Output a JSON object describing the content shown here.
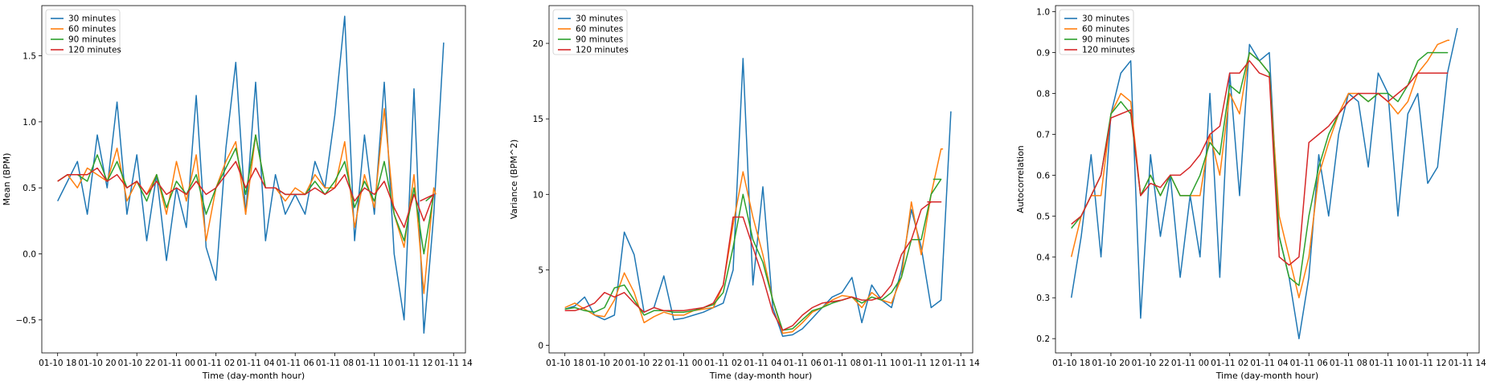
{
  "chart_data": [
    {
      "type": "line",
      "ylabel": "Mean (BPM)",
      "xlabel": "Time (day-month hour)",
      "x_ticks": [
        "01-10 18",
        "01-10 20",
        "01-10 22",
        "01-11 00",
        "01-11 02",
        "01-11 04",
        "01-11 06",
        "01-11 08",
        "01-11 10",
        "01-11 12",
        "01-11 14"
      ],
      "x_range_hours": [
        17.2,
        38.6
      ],
      "y_ticks": [
        -0.5,
        0.0,
        0.5,
        1.0,
        1.5
      ],
      "ylim": [
        -0.75,
        1.88
      ],
      "legend_position": "top-left",
      "x": [
        18,
        18.5,
        19,
        19.5,
        20,
        20.5,
        21,
        21.5,
        22,
        22.5,
        23,
        23.5,
        24,
        24.5,
        25,
        25.5,
        26,
        26.5,
        27,
        27.5,
        28,
        28.5,
        29,
        29.5,
        30,
        30.5,
        31,
        31.5,
        32,
        32.5,
        33,
        33.5,
        34,
        34.5,
        35,
        35.5,
        36,
        36.5,
        37,
        37.5
      ],
      "series": [
        {
          "name": "30 minutes",
          "color": "#1f77b4",
          "x_end": 38.1,
          "values": [
            0.4,
            0.55,
            0.7,
            0.3,
            0.9,
            0.5,
            1.15,
            0.3,
            0.75,
            0.1,
            0.6,
            -0.05,
            0.5,
            0.2,
            1.2,
            0.05,
            -0.2,
            0.8,
            1.45,
            0.3,
            1.3,
            0.1,
            0.6,
            0.3,
            0.45,
            0.3,
            0.7,
            0.5,
            1.05,
            1.8,
            0.1,
            0.9,
            0.3,
            1.3,
            0.0,
            -0.5,
            1.25,
            -0.6,
            0.3,
            1.6
          ]
        },
        {
          "name": "60 minutes",
          "color": "#ff7f0e",
          "x_end": 37.1,
          "values": [
            0.55,
            0.6,
            0.5,
            0.65,
            0.6,
            0.55,
            0.8,
            0.4,
            0.55,
            0.45,
            0.6,
            0.3,
            0.7,
            0.4,
            0.75,
            0.1,
            0.5,
            0.7,
            0.85,
            0.3,
            0.9,
            0.5,
            0.5,
            0.4,
            0.5,
            0.45,
            0.6,
            0.5,
            0.5,
            0.85,
            0.2,
            0.6,
            0.35,
            1.1,
            0.3,
            0.05,
            0.6,
            -0.3,
            0.5,
            0.45
          ]
        },
        {
          "name": "90 minutes",
          "color": "#2ca02c",
          "x_end": 36.6,
          "values": [
            0.55,
            0.6,
            0.6,
            0.55,
            0.75,
            0.55,
            0.7,
            0.5,
            0.55,
            0.4,
            0.6,
            0.35,
            0.55,
            0.45,
            0.6,
            0.3,
            0.5,
            0.65,
            0.8,
            0.45,
            0.9,
            0.5,
            0.5,
            0.45,
            0.45,
            0.45,
            0.55,
            0.45,
            0.55,
            0.7,
            0.35,
            0.55,
            0.4,
            0.7,
            0.3,
            0.1,
            0.5,
            0.0,
            0.45,
            0.4
          ]
        },
        {
          "name": "120 minutes",
          "color": "#d62728",
          "x_end": 36.3,
          "values": [
            0.55,
            0.6,
            0.6,
            0.6,
            0.65,
            0.55,
            0.6,
            0.5,
            0.55,
            0.45,
            0.55,
            0.45,
            0.5,
            0.45,
            0.55,
            0.45,
            0.5,
            0.6,
            0.7,
            0.5,
            0.65,
            0.5,
            0.5,
            0.45,
            0.45,
            0.45,
            0.5,
            0.45,
            0.5,
            0.6,
            0.4,
            0.5,
            0.45,
            0.55,
            0.35,
            0.2,
            0.45,
            0.25,
            0.45,
            0.4
          ]
        }
      ]
    },
    {
      "type": "line",
      "ylabel": "Variance (BPM^2)",
      "xlabel": "Time (day-month hour)",
      "x_ticks": [
        "01-10 18",
        "01-10 20",
        "01-10 22",
        "01-11 00",
        "01-11 02",
        "01-11 04",
        "01-11 06",
        "01-11 08",
        "01-11 10",
        "01-11 12",
        "01-11 14"
      ],
      "x_range_hours": [
        17.2,
        38.6
      ],
      "y_ticks": [
        0,
        5,
        10,
        15,
        20
      ],
      "ylim": [
        -0.5,
        22.5
      ],
      "legend_position": "top-left",
      "x": [
        18,
        18.5,
        19,
        19.5,
        20,
        20.5,
        21,
        21.5,
        22,
        22.5,
        23,
        23.5,
        24,
        24.5,
        25,
        25.5,
        26,
        26.5,
        27,
        27.5,
        28,
        28.5,
        29,
        29.5,
        30,
        30.5,
        31,
        31.5,
        32,
        32.5,
        33,
        33.5,
        34,
        34.5,
        35,
        35.5,
        36,
        36.5,
        37,
        37.5
      ],
      "series": [
        {
          "name": "30 minutes",
          "color": "#1f77b4",
          "x_end": 38.1,
          "values": [
            2.4,
            2.6,
            3.2,
            2.0,
            1.7,
            2.0,
            7.5,
            6.0,
            2.2,
            2.5,
            4.6,
            1.7,
            1.8,
            2.0,
            2.2,
            2.5,
            2.8,
            5.0,
            19.0,
            4.0,
            10.5,
            2.5,
            0.6,
            0.7,
            1.1,
            1.8,
            2.5,
            3.2,
            3.5,
            4.5,
            1.5,
            4.0,
            3.0,
            2.5,
            5.0,
            9.0,
            6.5,
            2.5,
            3.0,
            15.5
          ]
        },
        {
          "name": "60 minutes",
          "color": "#ff7f0e",
          "x_end": 37.1,
          "values": [
            2.5,
            2.8,
            2.4,
            2.0,
            1.9,
            3.0,
            4.8,
            3.5,
            1.5,
            1.9,
            2.2,
            2.0,
            2.0,
            2.3,
            2.4,
            2.5,
            4.0,
            8.0,
            11.5,
            8.5,
            6.0,
            3.0,
            0.8,
            0.9,
            1.5,
            2.2,
            2.5,
            3.0,
            3.3,
            3.2,
            2.5,
            3.5,
            3.0,
            2.8,
            4.5,
            9.5,
            6.0,
            10.0,
            13.0,
            13.0
          ]
        },
        {
          "name": "90 minutes",
          "color": "#2ca02c",
          "x_end": 36.6,
          "values": [
            2.4,
            2.5,
            2.3,
            2.2,
            2.5,
            3.8,
            4.0,
            3.0,
            2.0,
            2.3,
            2.3,
            2.2,
            2.2,
            2.3,
            2.5,
            2.7,
            3.5,
            6.5,
            10.0,
            7.0,
            5.5,
            3.0,
            1.0,
            1.1,
            1.7,
            2.3,
            2.5,
            2.8,
            3.0,
            3.2,
            2.8,
            3.2,
            3.0,
            3.5,
            4.5,
            7.0,
            7.0,
            10.0,
            11.0,
            11.0
          ]
        },
        {
          "name": "120 minutes",
          "color": "#d62728",
          "x_end": 36.3,
          "values": [
            2.3,
            2.3,
            2.5,
            2.8,
            3.5,
            3.2,
            3.5,
            2.8,
            2.2,
            2.5,
            2.3,
            2.3,
            2.3,
            2.4,
            2.5,
            2.8,
            4.0,
            8.5,
            8.5,
            6.5,
            4.5,
            2.2,
            1.0,
            1.3,
            2.0,
            2.5,
            2.8,
            2.9,
            3.0,
            3.2,
            3.0,
            3.0,
            3.2,
            4.0,
            6.0,
            7.0,
            9.0,
            9.5,
            9.5,
            9.5
          ]
        }
      ]
    },
    {
      "type": "line",
      "ylabel": "Autocorrelation",
      "xlabel": "Time (day-month hour)",
      "x_ticks": [
        "01-10 18",
        "01-10 20",
        "01-10 22",
        "01-11 00",
        "01-11 02",
        "01-11 04",
        "01-11 06",
        "01-11 08",
        "01-11 10",
        "01-11 12",
        "01-11 14"
      ],
      "x_range_hours": [
        17.2,
        38.6
      ],
      "y_ticks": [
        0.2,
        0.3,
        0.4,
        0.5,
        0.6,
        0.7,
        0.8,
        0.9,
        1.0
      ],
      "ylim": [
        0.165,
        1.015
      ],
      "legend_position": "top-left",
      "x": [
        18,
        18.5,
        19,
        19.5,
        20,
        20.5,
        21,
        21.5,
        22,
        22.5,
        23,
        23.5,
        24,
        24.5,
        25,
        25.5,
        26,
        26.5,
        27,
        27.5,
        28,
        28.5,
        29,
        29.5,
        30,
        30.5,
        31,
        31.5,
        32,
        32.5,
        33,
        33.5,
        34,
        34.5,
        35,
        35.5,
        36,
        36.5,
        37,
        37.5
      ],
      "series": [
        {
          "name": "30 minutes",
          "color": "#1f77b4",
          "x_end": 38.1,
          "values": [
            0.3,
            0.45,
            0.65,
            0.4,
            0.75,
            0.85,
            0.88,
            0.25,
            0.65,
            0.45,
            0.6,
            0.35,
            0.55,
            0.4,
            0.8,
            0.35,
            0.85,
            0.55,
            0.92,
            0.88,
            0.9,
            0.45,
            0.35,
            0.2,
            0.35,
            0.65,
            0.5,
            0.7,
            0.8,
            0.78,
            0.62,
            0.85,
            0.8,
            0.5,
            0.75,
            0.8,
            0.58,
            0.62,
            0.85,
            0.96
          ]
        },
        {
          "name": "60 minutes",
          "color": "#ff7f0e",
          "x_end": 37.1,
          "values": [
            0.4,
            0.5,
            0.55,
            0.55,
            0.75,
            0.8,
            0.78,
            0.55,
            0.6,
            0.55,
            0.6,
            0.55,
            0.55,
            0.55,
            0.7,
            0.6,
            0.8,
            0.75,
            0.9,
            0.88,
            0.85,
            0.5,
            0.4,
            0.3,
            0.4,
            0.6,
            0.68,
            0.75,
            0.8,
            0.8,
            0.78,
            0.8,
            0.78,
            0.75,
            0.78,
            0.85,
            0.88,
            0.92,
            0.93,
            0.93
          ]
        },
        {
          "name": "90 minutes",
          "color": "#2ca02c",
          "x_end": 36.6,
          "values": [
            0.47,
            0.5,
            0.55,
            0.6,
            0.75,
            0.78,
            0.75,
            0.55,
            0.6,
            0.55,
            0.6,
            0.55,
            0.55,
            0.6,
            0.68,
            0.65,
            0.82,
            0.8,
            0.9,
            0.88,
            0.85,
            0.45,
            0.35,
            0.33,
            0.5,
            0.62,
            0.7,
            0.75,
            0.78,
            0.8,
            0.78,
            0.8,
            0.8,
            0.78,
            0.82,
            0.88,
            0.9,
            0.9,
            0.9,
            0.9
          ]
        },
        {
          "name": "120 minutes",
          "color": "#d62728",
          "x_end": 36.3,
          "values": [
            0.48,
            0.5,
            0.55,
            0.6,
            0.74,
            0.75,
            0.76,
            0.55,
            0.58,
            0.57,
            0.6,
            0.6,
            0.62,
            0.65,
            0.7,
            0.72,
            0.85,
            0.85,
            0.88,
            0.85,
            0.84,
            0.4,
            0.38,
            0.4,
            0.68,
            0.7,
            0.72,
            0.75,
            0.78,
            0.8,
            0.8,
            0.8,
            0.78,
            0.8,
            0.82,
            0.85,
            0.85,
            0.85,
            0.85,
            0.85
          ]
        }
      ]
    }
  ]
}
